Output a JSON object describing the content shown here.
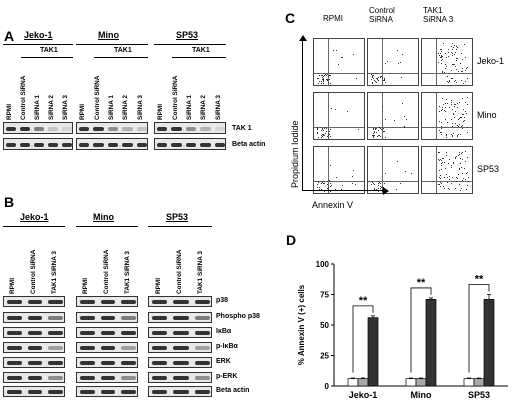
{
  "panel_a": {
    "letter": "A",
    "cell_lines": [
      "Jeko-1",
      "Mino",
      "SP53"
    ],
    "group_label": "TAK1",
    "lanes": [
      "RPMI",
      "Control SiRNA",
      "SiRNA 1",
      "SiRNA 2",
      "SiRNA 3"
    ],
    "markers": [
      "TAK 1",
      "Beta actin"
    ]
  },
  "panel_b": {
    "letter": "B",
    "cell_lines": [
      "Jeko-1",
      "Mino",
      "SP53"
    ],
    "lanes": [
      "RPMI",
      "Control SiRNA",
      "TAK1 SiRNA 3"
    ],
    "markers": [
      "p38",
      "Phospho p38",
      "IκBα",
      "p-IκBα",
      "ERK",
      "p-ERK",
      "Beta actin"
    ]
  },
  "panel_c": {
    "letter": "C",
    "columns": [
      "RPMI",
      "Control\nSiRNA",
      "TAK1\nSiRNA 3"
    ],
    "col_lines": [
      [
        "RPMI"
      ],
      [
        "Control",
        "SiRNA"
      ],
      [
        "TAK1",
        "SiRNA 3"
      ]
    ],
    "rows": [
      "Jeko-1",
      "Mino",
      "SP53"
    ],
    "ylabel": "Propidium Iodide",
    "xlabel": "Annexin V"
  },
  "panel_d": {
    "letter": "D",
    "significance": "**"
  },
  "chart_data": {
    "type": "bar",
    "title": "",
    "categories": [
      "Jeko-1",
      "Mino",
      "SP53"
    ],
    "series": [
      {
        "values": [
          6,
          6,
          6
        ],
        "errors": [
          0.5,
          0.5,
          0.5
        ],
        "color": "#ffffff"
      },
      {
        "values": [
          6,
          6,
          6
        ],
        "errors": [
          0.6,
          0.5,
          0.5
        ],
        "color": "#a8a8a8"
      },
      {
        "values": [
          56,
          71,
          71
        ],
        "errors": [
          1.5,
          1.2,
          4
        ],
        "color": "#333333"
      }
    ],
    "xlabel": "",
    "ylabel": "% Annexin V (+) cells",
    "ylim": [
      0,
      100
    ],
    "yticks": [
      0,
      25,
      50,
      75,
      100
    ],
    "grid": false
  }
}
